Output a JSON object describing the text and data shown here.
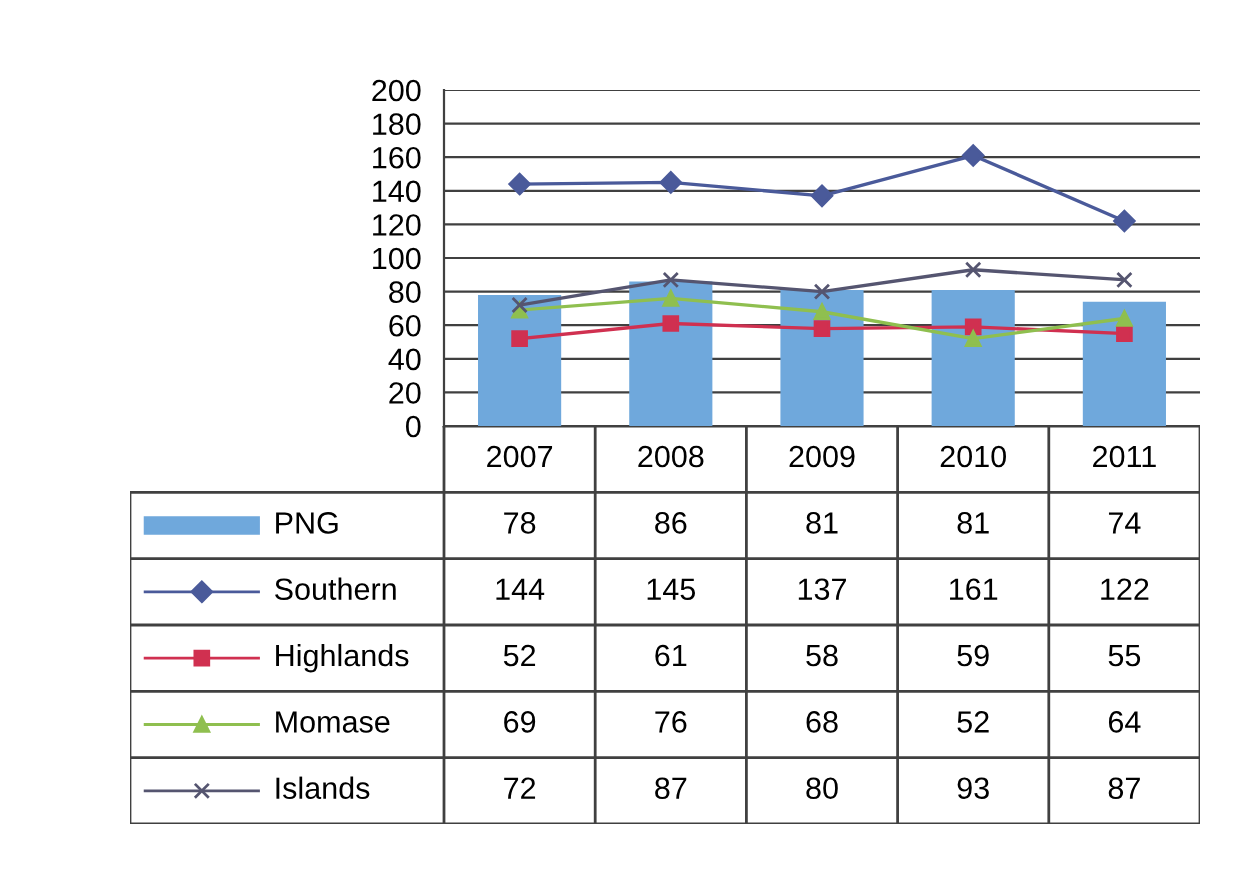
{
  "chart_data": {
    "type": "bar",
    "categories": [
      "2007",
      "2008",
      "2009",
      "2010",
      "2011"
    ],
    "series": [
      {
        "name": "PNG",
        "color": "#6fa8dc",
        "values": [
          78,
          86,
          81,
          81,
          74
        ]
      },
      {
        "name": "Southern",
        "type": "line",
        "color": "#4a5a9a",
        "marker": "diamond",
        "values": [
          144,
          145,
          137,
          161,
          122
        ]
      },
      {
        "name": "Highlands",
        "type": "line",
        "color": "#d03050",
        "marker": "square",
        "values": [
          52,
          61,
          58,
          59,
          55
        ]
      },
      {
        "name": "Momase",
        "type": "line",
        "color": "#8fbf4f",
        "marker": "triangle",
        "values": [
          69,
          76,
          68,
          52,
          64
        ]
      },
      {
        "name": "Islands",
        "type": "line",
        "color": "#555570",
        "marker": "cross",
        "values": [
          72,
          87,
          80,
          93,
          87
        ]
      }
    ],
    "ylim": [
      0,
      200
    ],
    "yticks": [
      0,
      20,
      40,
      60,
      80,
      100,
      120,
      140,
      160,
      180,
      200
    ],
    "grid": "y",
    "legend": "bottom left",
    "data_labels": true
  }
}
